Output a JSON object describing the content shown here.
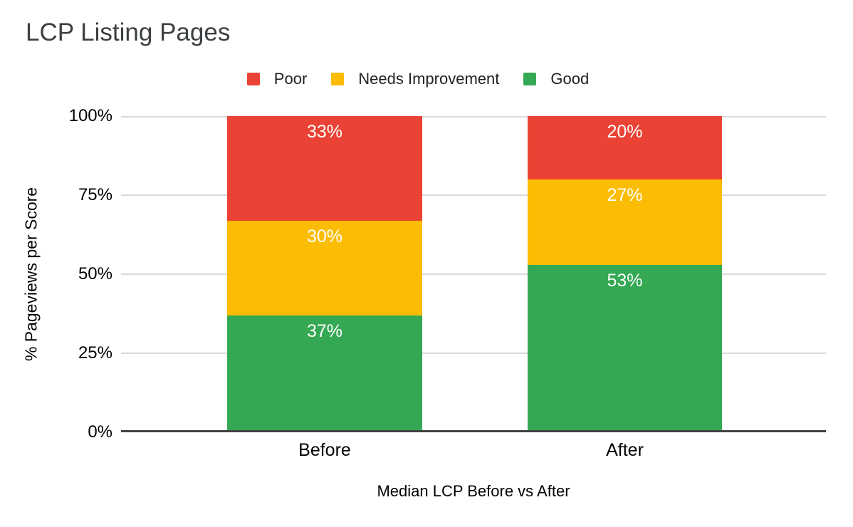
{
  "title": "LCP Listing Pages",
  "legend": [
    {
      "label": "Poor",
      "color": "#EA4335"
    },
    {
      "label": "Needs Improvement",
      "color": "#FBBC04"
    },
    {
      "label": "Good",
      "color": "#34A853"
    }
  ],
  "axes": {
    "y_title": "% Pageviews per Score",
    "x_title": "Median LCP Before vs After",
    "y_ticks": [
      "100%",
      "75%",
      "50%",
      "25%",
      "0%"
    ]
  },
  "chart_data": {
    "type": "bar",
    "stacked": true,
    "orientation": "vertical",
    "title": "LCP Listing Pages",
    "xlabel": "Median LCP Before vs After",
    "ylabel": "% Pageviews per Score",
    "ylim": [
      0,
      100
    ],
    "y_tick_labels": [
      "0%",
      "25%",
      "50%",
      "75%",
      "100%"
    ],
    "grid": true,
    "legend_position": "top",
    "categories": [
      "Before",
      "After"
    ],
    "series": [
      {
        "name": "Poor",
        "color": "#EA4335",
        "values": [
          33,
          20
        ]
      },
      {
        "name": "Needs Improvement",
        "color": "#FBBC04",
        "values": [
          30,
          27
        ]
      },
      {
        "name": "Good",
        "color": "#34A853",
        "values": [
          37,
          53
        ]
      }
    ],
    "value_labels": [
      [
        "33%",
        "30%",
        "37%"
      ],
      [
        "20%",
        "27%",
        "53%"
      ]
    ],
    "label_color": "#ffffff",
    "gridline_color": "#d9d9d9",
    "baseline_color": "#424242"
  }
}
